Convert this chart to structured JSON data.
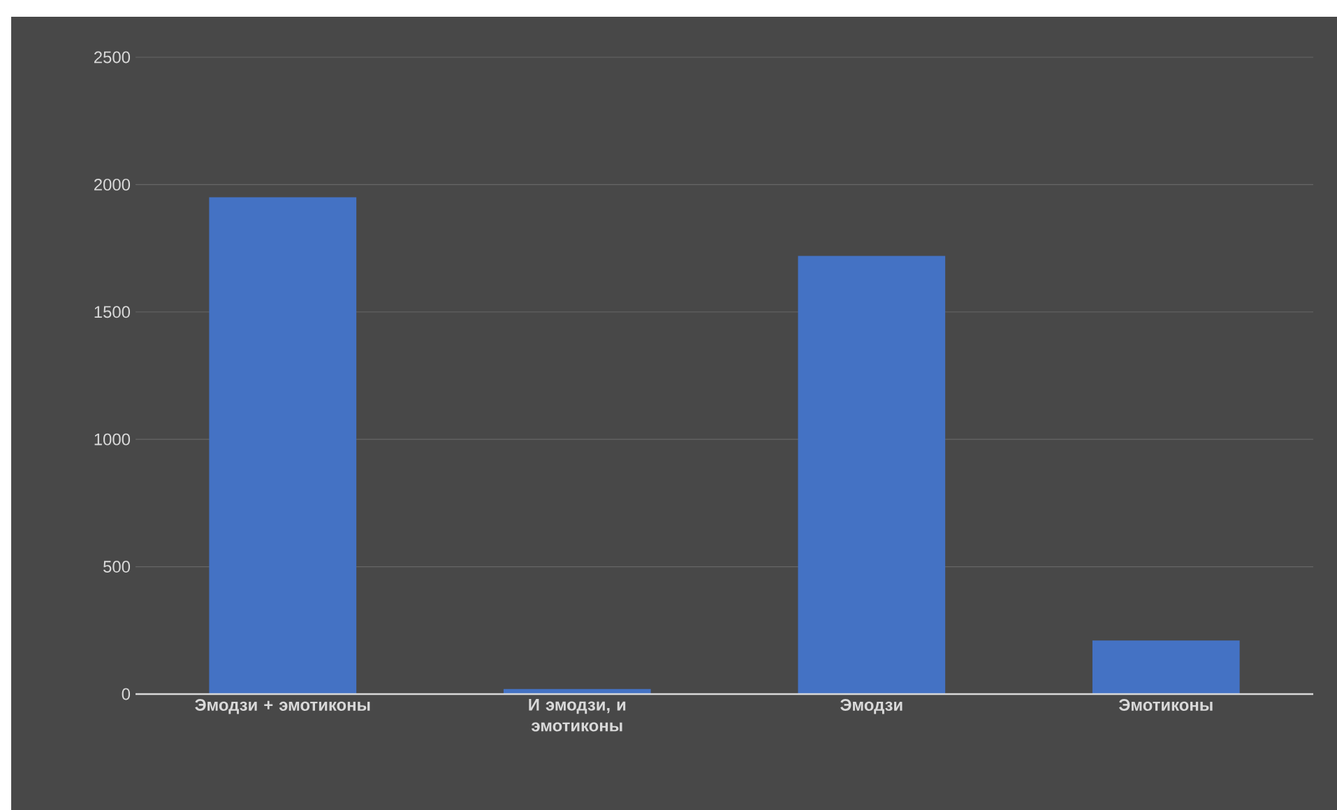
{
  "chart_data": {
    "type": "bar",
    "categories": [
      "Эмодзи + эмотиконы",
      "И эмодзи, и эмотиконы",
      "Эмодзи",
      "Эмотиконы"
    ],
    "values": [
      1950,
      20,
      1720,
      210
    ],
    "color": "#4472c4",
    "ylim": [
      0,
      2500
    ],
    "yticks": [
      0,
      500,
      1000,
      1500,
      2000,
      2500
    ],
    "grid": "y"
  }
}
